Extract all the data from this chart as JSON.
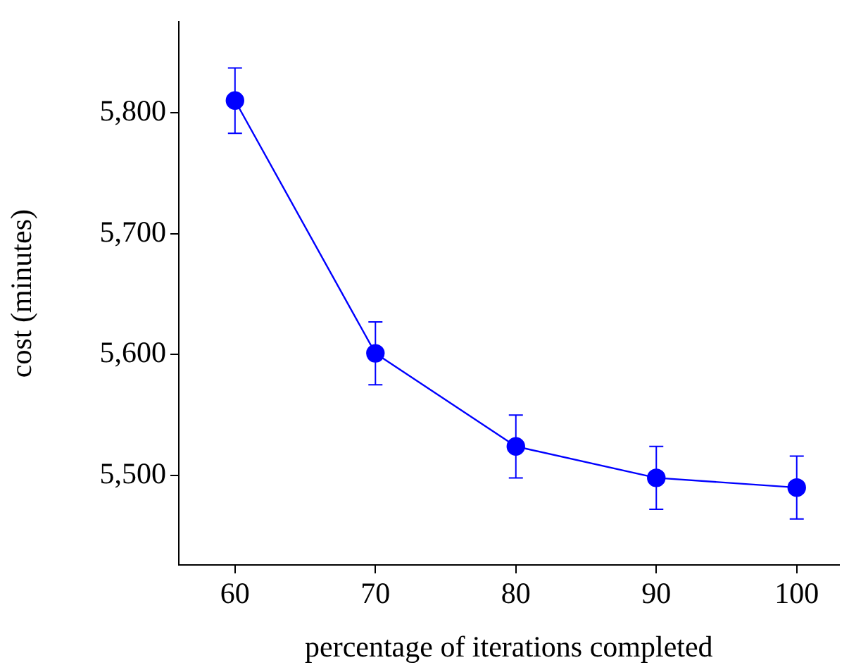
{
  "chart_data": {
    "type": "line",
    "xlabel": "percentage of iterations completed",
    "ylabel": "cost (minutes)",
    "x": [
      60,
      70,
      80,
      90,
      100
    ],
    "series": [
      {
        "color": "#0000ff",
        "values": [
          5810,
          5601,
          5524,
          5498,
          5490
        ],
        "errors": [
          27,
          26,
          26,
          26,
          26
        ]
      }
    ],
    "xlim": [
      56,
      103
    ],
    "xticks": [
      60,
      70,
      80,
      90,
      100
    ],
    "ylim": [
      5426,
      5875
    ],
    "yticks": [
      {
        "value": 5500,
        "label": "5,500"
      },
      {
        "value": 5600,
        "label": "5,600"
      },
      {
        "value": 5700,
        "label": "5,700"
      },
      {
        "value": 5800,
        "label": "5,800"
      }
    ],
    "grid": false,
    "legend": false,
    "marker": "circle",
    "line_style": "solid"
  }
}
